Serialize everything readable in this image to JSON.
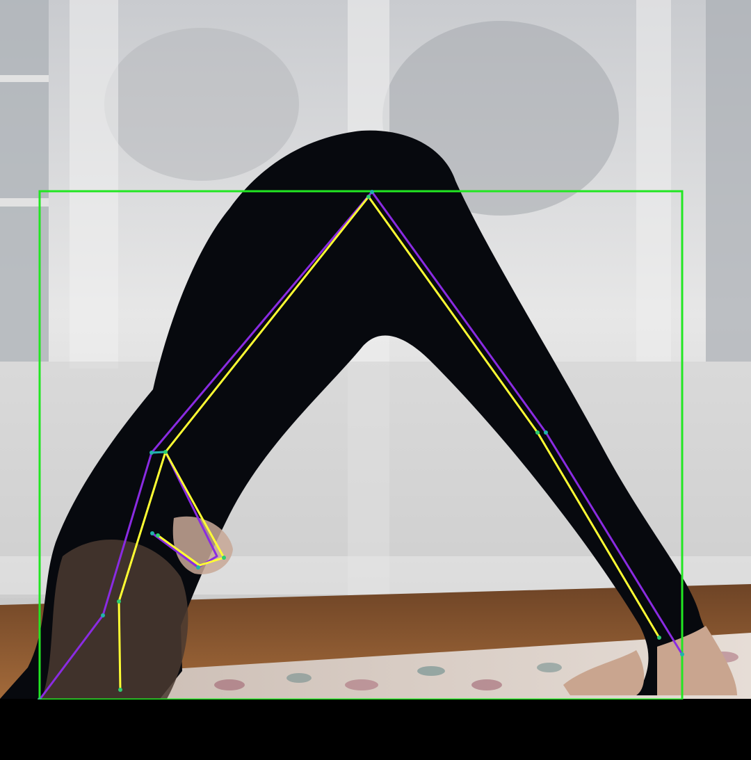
{
  "scene": {
    "description_icon": "yoga-pose-photo",
    "colors": {
      "background_letterbox": "#000000",
      "bounding_box": "#22e622",
      "skeleton_primary": "#8a2be2",
      "skeleton_secondary": "#ffff33",
      "keypoint": "#2ecc71",
      "keypoint_alt": "#20b2aa",
      "silhouette": "#07090e",
      "curtain": "#d8d8d8",
      "window": "#b9bcc0",
      "floor": "#8a5a33",
      "rug": "#d9cfc7"
    }
  }
}
